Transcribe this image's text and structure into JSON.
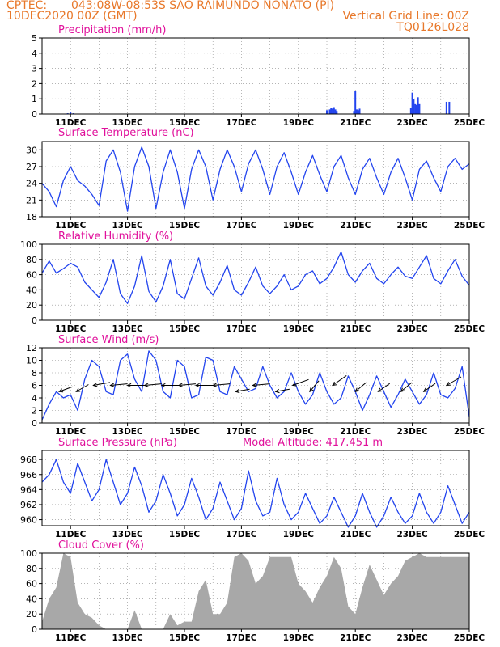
{
  "header": {
    "org": "CPTEC:",
    "location": "043:08W-08:53S  SAO RAIMUNDO NONATO (PI)",
    "init_time": "10DEC2020 00Z (GMT)",
    "grid_note": "Vertical Grid Line: 00Z",
    "code": "TQ0126L028"
  },
  "colors": {
    "header_text": "#e8782a",
    "title_text": "#e0109b",
    "line": "#2244ee",
    "cloud_fill": "#a8a8a8",
    "wind_arrow": "#000000"
  },
  "x_axis": {
    "ticks": [
      "11DEC",
      "13DEC",
      "15DEC",
      "17DEC",
      "19DEC",
      "21DEC",
      "23DEC",
      "25DEC"
    ],
    "tick_days": [
      11,
      13,
      15,
      17,
      19,
      21,
      23,
      25
    ],
    "range_days": [
      10,
      25
    ],
    "vertical_grid": "00Z daily"
  },
  "chart_data": [
    {
      "id": "precip",
      "type": "bar",
      "title": "Precipitation (mm/h)",
      "ylim": [
        0,
        5
      ],
      "yticks": [
        0,
        1,
        2,
        3,
        4,
        5
      ],
      "x_days": [
        10.9,
        11.0,
        11.1,
        20.0,
        20.1,
        20.15,
        20.2,
        20.25,
        20.3,
        20.35,
        20.95,
        21.0,
        21.05,
        21.1,
        21.15,
        22.95,
        23.0,
        23.05,
        23.1,
        23.15,
        23.2,
        23.25,
        24.2,
        24.3
      ],
      "values": [
        0.05,
        0.1,
        0.05,
        0.25,
        0.3,
        0.4,
        0.35,
        0.45,
        0.3,
        0.2,
        0.2,
        1.5,
        0.3,
        0.25,
        0.35,
        0.4,
        1.4,
        1.0,
        0.7,
        0.6,
        1.1,
        0.7,
        0.8,
        0.8
      ]
    },
    {
      "id": "temp",
      "type": "line",
      "title": "Surface Temperature (nC)",
      "ylim": [
        18,
        31.5
      ],
      "yticks": [
        18,
        21,
        24,
        27,
        30
      ],
      "x_days": [
        10.0,
        10.25,
        10.5,
        10.75,
        11.0,
        11.25,
        11.5,
        11.75,
        12.0,
        12.25,
        12.5,
        12.75,
        13.0,
        13.25,
        13.5,
        13.75,
        14.0,
        14.25,
        14.5,
        14.75,
        15.0,
        15.25,
        15.5,
        15.75,
        16.0,
        16.25,
        16.5,
        16.75,
        17.0,
        17.25,
        17.5,
        17.75,
        18.0,
        18.25,
        18.5,
        18.75,
        19.0,
        19.25,
        19.5,
        19.75,
        20.0,
        20.25,
        20.5,
        20.75,
        21.0,
        21.25,
        21.5,
        21.75,
        22.0,
        22.25,
        22.5,
        22.75,
        23.0,
        23.25,
        23.5,
        23.75,
        24.0,
        24.25,
        24.5,
        24.75,
        25.0
      ],
      "values": [
        24,
        22.5,
        19.8,
        24.5,
        27,
        24.5,
        23.5,
        22,
        20,
        28,
        30,
        26,
        19,
        27,
        30.5,
        27,
        19.5,
        26,
        30,
        26,
        19.5,
        26.5,
        30,
        27,
        21,
        26.5,
        30,
        27,
        22.5,
        27.5,
        30,
        26.5,
        22,
        27,
        29.5,
        26,
        22,
        26,
        29,
        25.5,
        22.5,
        27,
        29,
        25,
        22,
        26.5,
        28.5,
        25,
        22,
        26,
        28.5,
        25,
        21,
        26.5,
        28,
        25,
        22.5,
        27,
        28.5,
        26.5,
        27.5
      ]
    },
    {
      "id": "rh",
      "type": "line",
      "title": "Relative Humidity (%)",
      "ylim": [
        0,
        100
      ],
      "yticks": [
        0,
        20,
        40,
        60,
        80,
        100
      ],
      "x_days": [
        10.0,
        10.25,
        10.5,
        10.75,
        11.0,
        11.25,
        11.5,
        11.75,
        12.0,
        12.25,
        12.5,
        12.75,
        13.0,
        13.25,
        13.5,
        13.75,
        14.0,
        14.25,
        14.5,
        14.75,
        15.0,
        15.25,
        15.5,
        15.75,
        16.0,
        16.25,
        16.5,
        16.75,
        17.0,
        17.25,
        17.5,
        17.75,
        18.0,
        18.25,
        18.5,
        18.75,
        19.0,
        19.25,
        19.5,
        19.75,
        20.0,
        20.25,
        20.5,
        20.75,
        21.0,
        21.25,
        21.5,
        21.75,
        22.0,
        22.25,
        22.5,
        22.75,
        23.0,
        23.25,
        23.5,
        23.75,
        24.0,
        24.25,
        24.5,
        24.75,
        25.0
      ],
      "values": [
        62,
        78,
        62,
        68,
        75,
        70,
        50,
        40,
        30,
        50,
        80,
        35,
        22,
        45,
        85,
        38,
        24,
        45,
        80,
        35,
        28,
        55,
        82,
        45,
        33,
        50,
        72,
        40,
        33,
        50,
        70,
        45,
        35,
        45,
        60,
        40,
        45,
        60,
        65,
        48,
        55,
        70,
        90,
        60,
        50,
        65,
        75,
        55,
        48,
        60,
        70,
        58,
        55,
        70,
        85,
        55,
        48,
        65,
        80,
        58,
        46
      ]
    },
    {
      "id": "wind",
      "type": "line",
      "title": "Surface Wind (m/s)",
      "ylim": [
        0,
        12
      ],
      "yticks": [
        0,
        2,
        4,
        6,
        8,
        10,
        12
      ],
      "x_days": [
        10.0,
        10.25,
        10.5,
        10.75,
        11.0,
        11.25,
        11.5,
        11.75,
        12.0,
        12.25,
        12.5,
        12.75,
        13.0,
        13.25,
        13.5,
        13.75,
        14.0,
        14.25,
        14.5,
        14.75,
        15.0,
        15.25,
        15.5,
        15.75,
        16.0,
        16.25,
        16.5,
        16.75,
        17.0,
        17.25,
        17.5,
        17.75,
        18.0,
        18.25,
        18.5,
        18.75,
        19.0,
        19.25,
        19.5,
        19.75,
        20.0,
        20.25,
        20.5,
        20.75,
        21.0,
        21.25,
        21.5,
        21.75,
        22.0,
        22.25,
        22.5,
        22.75,
        23.0,
        23.25,
        23.5,
        23.75,
        24.0,
        24.25,
        24.5,
        24.75,
        25.0
      ],
      "values": [
        0.5,
        3,
        5,
        4,
        4.5,
        2,
        7,
        10,
        9,
        5,
        4.5,
        10,
        11,
        7,
        5,
        11.5,
        10,
        5,
        4,
        10,
        9,
        4,
        4.5,
        10.5,
        10,
        5,
        4.5,
        9,
        7,
        5,
        5.5,
        9,
        6,
        4,
        5,
        8,
        5,
        3,
        4.5,
        8,
        5,
        3,
        4,
        7.5,
        5,
        2,
        4.5,
        7.5,
        5,
        2.5,
        4.5,
        7,
        5,
        3,
        4.5,
        8,
        4.5,
        4,
        5.5,
        9,
        1
      ],
      "arrows": [
        {
          "day": 10.6,
          "speed": 5,
          "dir_deg": 200
        },
        {
          "day": 11.2,
          "speed": 5,
          "dir_deg": 210
        },
        {
          "day": 11.8,
          "speed": 6,
          "dir_deg": 190
        },
        {
          "day": 12.4,
          "speed": 6,
          "dir_deg": 185
        },
        {
          "day": 13.0,
          "speed": 6,
          "dir_deg": 180
        },
        {
          "day": 13.6,
          "speed": 6,
          "dir_deg": 185
        },
        {
          "day": 14.2,
          "speed": 6,
          "dir_deg": 180
        },
        {
          "day": 14.8,
          "speed": 6,
          "dir_deg": 185
        },
        {
          "day": 15.4,
          "speed": 6,
          "dir_deg": 180
        },
        {
          "day": 16.0,
          "speed": 6,
          "dir_deg": 185
        },
        {
          "day": 16.8,
          "speed": 5,
          "dir_deg": 190
        },
        {
          "day": 17.4,
          "speed": 6,
          "dir_deg": 185
        },
        {
          "day": 18.2,
          "speed": 5,
          "dir_deg": 190
        },
        {
          "day": 18.8,
          "speed": 6,
          "dir_deg": 200
        },
        {
          "day": 19.4,
          "speed": 5,
          "dir_deg": 230
        },
        {
          "day": 20.2,
          "speed": 6,
          "dir_deg": 215
        },
        {
          "day": 21.0,
          "speed": 5,
          "dir_deg": 220
        },
        {
          "day": 21.8,
          "speed": 5,
          "dir_deg": 215
        },
        {
          "day": 22.6,
          "speed": 5,
          "dir_deg": 220
        },
        {
          "day": 23.4,
          "speed": 5,
          "dir_deg": 215
        },
        {
          "day": 24.2,
          "speed": 6,
          "dir_deg": 210
        }
      ]
    },
    {
      "id": "pres",
      "type": "line",
      "title": "Surface Pressure (hPa)",
      "annotation": "Model Altitude: 417.451  m",
      "ylim": [
        959.2,
        969.2
      ],
      "yticks": [
        960,
        962,
        964,
        966,
        968
      ],
      "x_days": [
        10.0,
        10.25,
        10.5,
        10.75,
        11.0,
        11.25,
        11.5,
        11.75,
        12.0,
        12.25,
        12.5,
        12.75,
        13.0,
        13.25,
        13.5,
        13.75,
        14.0,
        14.25,
        14.5,
        14.75,
        15.0,
        15.25,
        15.5,
        15.75,
        16.0,
        16.25,
        16.5,
        16.75,
        17.0,
        17.25,
        17.5,
        17.75,
        18.0,
        18.25,
        18.5,
        18.75,
        19.0,
        19.25,
        19.5,
        19.75,
        20.0,
        20.25,
        20.5,
        20.75,
        21.0,
        21.25,
        21.5,
        21.75,
        22.0,
        22.25,
        22.5,
        22.75,
        23.0,
        23.25,
        23.5,
        23.75,
        24.0,
        24.25,
        24.5,
        24.75,
        25.0
      ],
      "values": [
        965,
        966,
        968,
        965,
        963.5,
        967.5,
        965,
        962.5,
        964,
        968,
        965,
        962,
        963.5,
        967,
        964.5,
        961,
        962.5,
        966,
        963.5,
        960.5,
        962,
        965.5,
        963,
        960,
        961.5,
        965,
        962.5,
        960,
        961.5,
        966.5,
        962.5,
        960.5,
        961,
        965.5,
        962,
        960,
        961,
        963.5,
        961.5,
        959.5,
        960.5,
        963,
        961,
        959,
        960.5,
        963.5,
        961,
        959,
        960.5,
        963,
        961,
        959.5,
        960.5,
        963.5,
        961,
        959.5,
        961,
        964.5,
        962,
        959.5,
        961
      ]
    },
    {
      "id": "cloud",
      "type": "area",
      "title": "Cloud Cover (%)",
      "ylim": [
        0,
        100
      ],
      "yticks": [
        0,
        20,
        40,
        60,
        80,
        100
      ],
      "x_days": [
        10.0,
        10.25,
        10.5,
        10.75,
        11.0,
        11.25,
        11.5,
        11.75,
        12.0,
        12.25,
        12.5,
        12.75,
        13.0,
        13.25,
        13.5,
        13.75,
        14.0,
        14.25,
        14.5,
        14.75,
        15.0,
        15.25,
        15.5,
        15.75,
        16.0,
        16.25,
        16.5,
        16.75,
        17.0,
        17.25,
        17.5,
        17.75,
        18.0,
        18.25,
        18.5,
        18.75,
        19.0,
        19.25,
        19.5,
        19.75,
        20.0,
        20.25,
        20.5,
        20.75,
        21.0,
        21.25,
        21.5,
        21.75,
        22.0,
        22.25,
        22.5,
        22.75,
        23.0,
        23.25,
        23.5,
        23.75,
        24.0,
        24.25,
        24.5,
        24.75,
        25.0
      ],
      "values": [
        10,
        40,
        55,
        100,
        95,
        35,
        20,
        15,
        5,
        0,
        0,
        0,
        0,
        25,
        0,
        0,
        0,
        0,
        20,
        5,
        10,
        10,
        50,
        65,
        20,
        20,
        35,
        95,
        100,
        90,
        60,
        70,
        95,
        95,
        95,
        95,
        60,
        50,
        35,
        55,
        70,
        95,
        80,
        30,
        20,
        55,
        85,
        65,
        45,
        60,
        70,
        90,
        95,
        100,
        95,
        95,
        95,
        95,
        95,
        95,
        95
      ]
    }
  ]
}
